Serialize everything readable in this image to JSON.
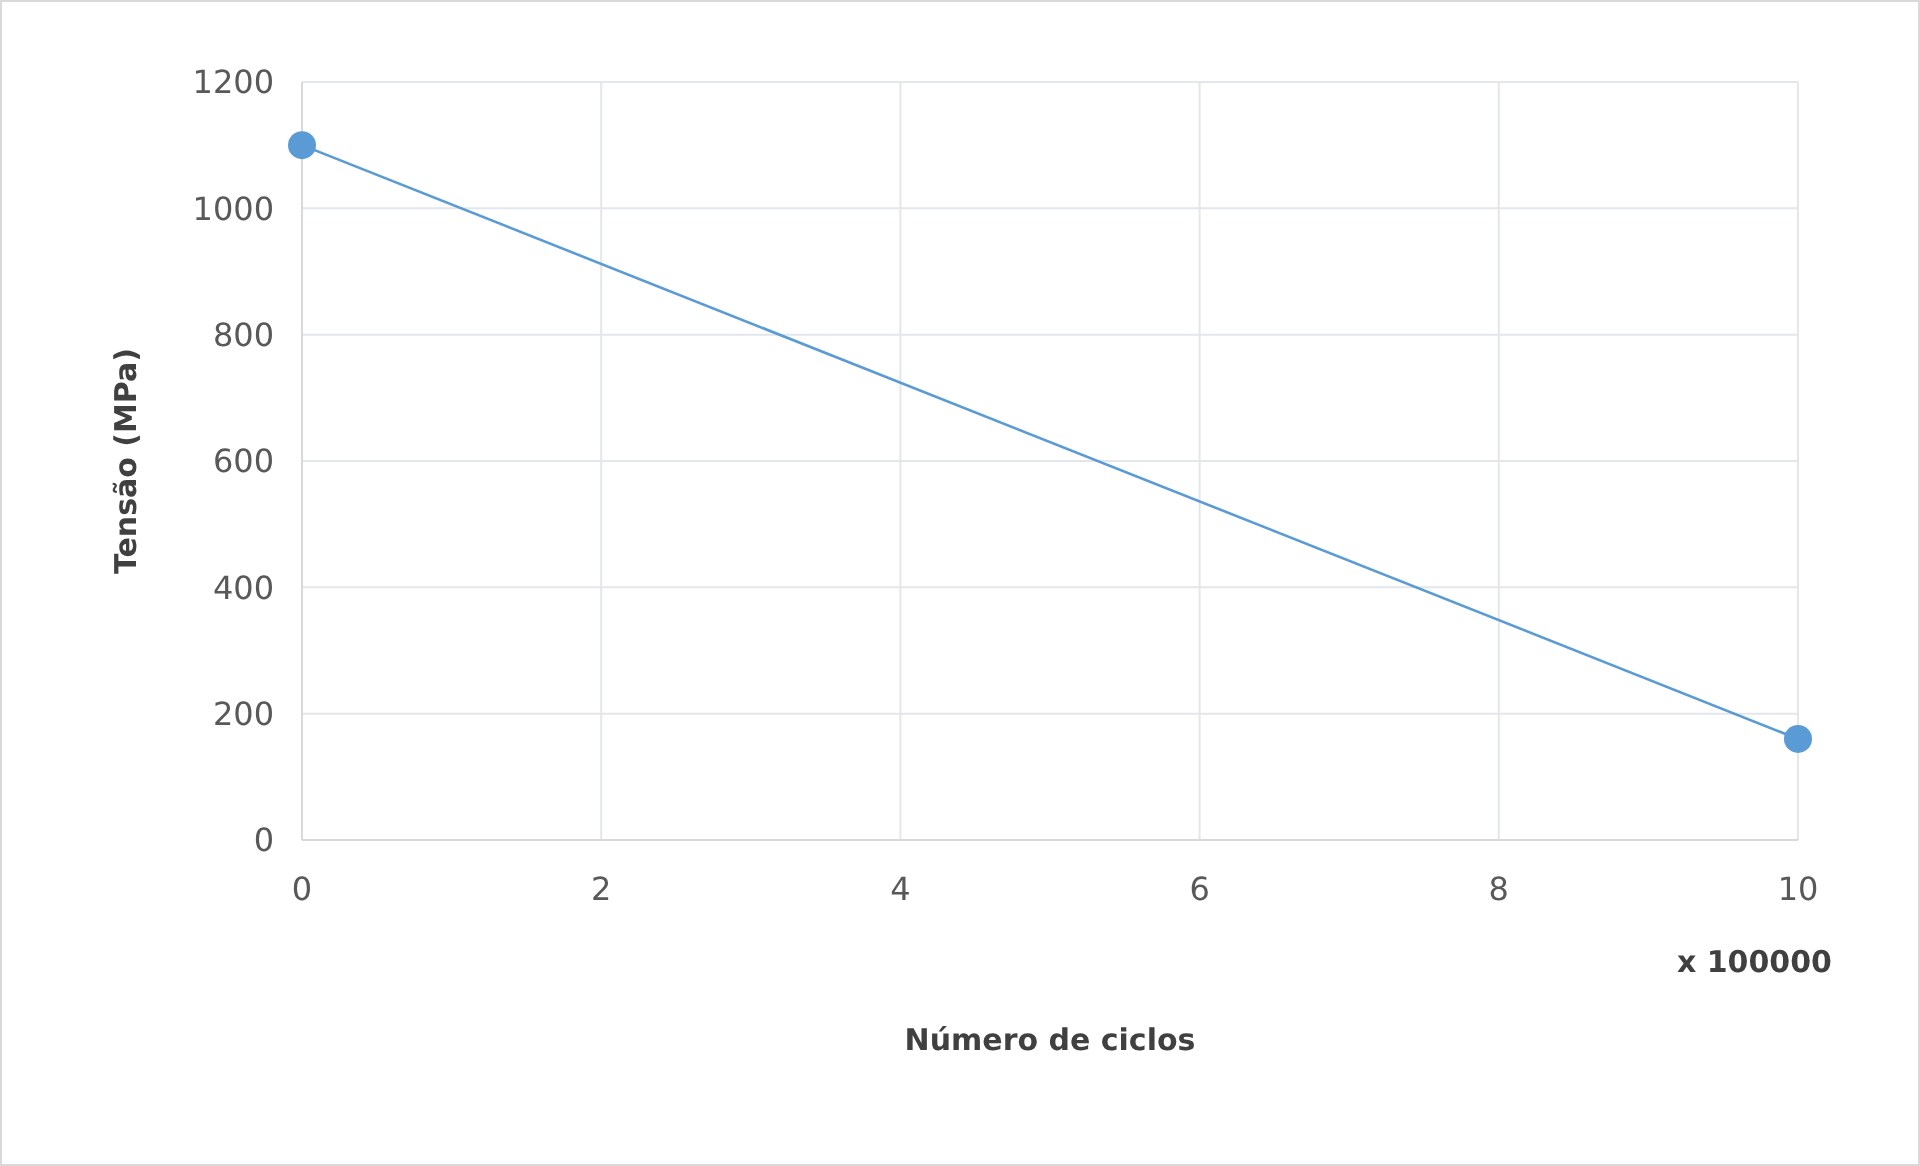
{
  "chart_data": {
    "type": "line",
    "xlabel": "Número de ciclos",
    "ylabel": "Tensão (MPa)",
    "annotations": [
      "x 100000"
    ],
    "x": [
      0,
      10
    ],
    "series": [
      {
        "color": "#5b9bd5",
        "values": [
          1100,
          160
        ]
      }
    ],
    "xlim": [
      0,
      10
    ],
    "xticks": [
      0,
      2,
      4,
      6,
      8,
      10
    ],
    "ylim": [
      0,
      1200
    ],
    "yticks": [
      0,
      200,
      400,
      600,
      800,
      1000,
      1200
    ],
    "grid": true,
    "marker": "circle",
    "line_style": "solid"
  }
}
